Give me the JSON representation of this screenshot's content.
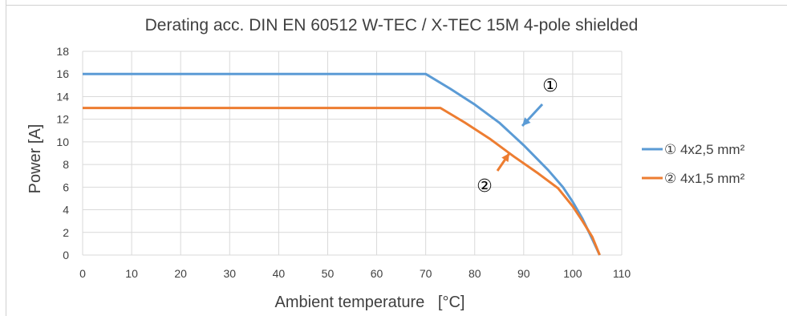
{
  "chart_data": {
    "type": "line",
    "title": "Derating acc. DIN EN 60512 W-TEC / X-TEC 15M 4-pole shielded",
    "xlabel": "Ambient temperature   [°C]",
    "ylabel": "Power   [A]",
    "xlim": [
      0,
      110
    ],
    "ylim": [
      0,
      18
    ],
    "xticks": [
      0,
      10,
      20,
      30,
      40,
      50,
      60,
      70,
      80,
      90,
      100,
      110
    ],
    "yticks": [
      0,
      2,
      4,
      6,
      8,
      10,
      12,
      14,
      16,
      18
    ],
    "grid": true,
    "legend_position": "right",
    "series": [
      {
        "name": "① 4x2,5 mm²",
        "marker": "①",
        "color": "#5b9bd5",
        "x": [
          0,
          70,
          75,
          80,
          85,
          90,
          95,
          98,
          100,
          102,
          104,
          105.5
        ],
        "y": [
          16,
          16,
          14.7,
          13.3,
          11.7,
          9.7,
          7.5,
          6.0,
          4.7,
          3.2,
          1.4,
          0
        ]
      },
      {
        "name": "② 4x1,5 mm²",
        "marker": "②",
        "color": "#ed7d31",
        "x": [
          0,
          73,
          78,
          83,
          88,
          93,
          97,
          100,
          102,
          104,
          105.5
        ],
        "y": [
          13,
          13,
          11.7,
          10.3,
          8.7,
          7.2,
          5.9,
          4.3,
          3.0,
          1.6,
          0
        ]
      }
    ],
    "annotations": [
      {
        "text": "①",
        "series": 0
      },
      {
        "text": "②",
        "series": 1
      }
    ]
  }
}
